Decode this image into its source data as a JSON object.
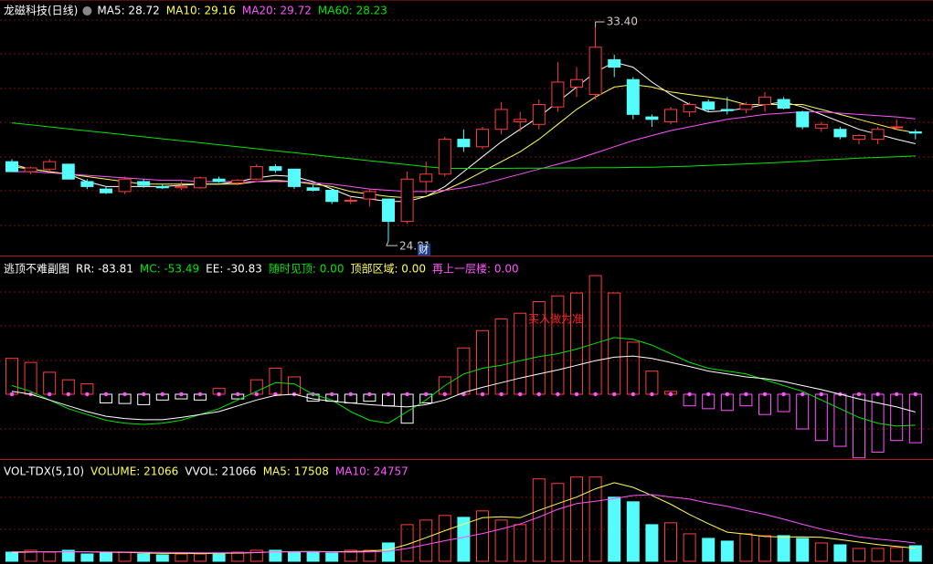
{
  "chart_data": [
    {
      "type": "candlestick",
      "title": "龙磁科技(日线)",
      "ylim": [
        24.3,
        34.5
      ],
      "up_color": "#ff3c3c",
      "down_color": "#54fcfc",
      "open": [
        28.0,
        27.6,
        27.7,
        27.9,
        27.2,
        26.9,
        26.8,
        27.2,
        27.0,
        26.95,
        26.95,
        27.3,
        27.15,
        27.3,
        27.8,
        27.7,
        26.95,
        26.85,
        26.45,
        26.5,
        26.5,
        25.6,
        27.2,
        27.5,
        28.9,
        28.6,
        29.3,
        29.6,
        29.5,
        30.2,
        31.0,
        30.7,
        32.1,
        31.3,
        29.8,
        29.6,
        30.0,
        30.4,
        30.1,
        30.1,
        30.3,
        30.5,
        30.0,
        29.35,
        29.3,
        28.9,
        28.9,
        29.4,
        29.2
      ],
      "high": [
        28.1,
        27.8,
        28.1,
        27.9,
        27.3,
        27.0,
        27.4,
        27.3,
        27.1,
        27.2,
        27.4,
        27.4,
        27.3,
        27.9,
        27.9,
        27.7,
        27.1,
        26.9,
        26.6,
        26.9,
        26.5,
        27.6,
        28.0,
        29.0,
        29.3,
        29.4,
        30.4,
        30.0,
        30.5,
        32.0,
        31.8,
        33.4,
        32.3,
        31.4,
        29.9,
        30.2,
        30.4,
        30.5,
        30.6,
        30.4,
        30.8,
        30.6,
        30.05,
        29.6,
        29.4,
        29.1,
        29.4,
        29.7,
        29.3
      ],
      "low": [
        27.6,
        27.5,
        27.6,
        27.3,
        26.9,
        26.7,
        26.7,
        26.95,
        26.9,
        26.85,
        26.9,
        27.15,
        27.05,
        27.25,
        27.55,
        26.9,
        26.8,
        26.3,
        26.3,
        26.2,
        24.81,
        25.5,
        26.7,
        27.4,
        28.4,
        28.5,
        29.1,
        29.2,
        29.3,
        30.0,
        30.6,
        30.5,
        31.4,
        29.7,
        29.4,
        29.5,
        29.8,
        30.0,
        29.9,
        29.95,
        30.0,
        30.1,
        29.3,
        29.2,
        28.9,
        28.7,
        28.7,
        29.3,
        28.9
      ],
      "close": [
        27.6,
        27.75,
        28.0,
        27.3,
        27.0,
        26.75,
        27.3,
        27.05,
        26.95,
        27.0,
        27.35,
        27.2,
        27.25,
        27.8,
        27.65,
        27.0,
        26.85,
        26.4,
        26.45,
        26.8,
        25.6,
        27.3,
        27.5,
        28.9,
        28.6,
        29.3,
        30.1,
        29.7,
        30.3,
        31.2,
        31.3,
        32.6,
        31.8,
        29.9,
        29.7,
        30.1,
        30.3,
        30.1,
        30.05,
        30.3,
        30.6,
        30.15,
        29.4,
        29.5,
        29.0,
        29.05,
        29.3,
        29.4,
        29.15
      ],
      "series": [
        {
          "name": "MA5: 28.72",
          "color": "#ffffff",
          "values": [
            27.9,
            27.7,
            27.6,
            27.5,
            27.2,
            27.0,
            27.0,
            27.0,
            27.0,
            27.05,
            27.1,
            27.1,
            27.2,
            27.35,
            27.45,
            27.4,
            27.2,
            26.9,
            26.6,
            26.5,
            26.4,
            26.4,
            26.6,
            27.0,
            27.6,
            28.2,
            28.8,
            29.3,
            29.8,
            30.4,
            31.0,
            31.6,
            32.0,
            31.8,
            31.2,
            30.7,
            30.3,
            30.0,
            30.05,
            30.15,
            30.3,
            30.4,
            30.2,
            29.9,
            29.6,
            29.3,
            29.1,
            28.9,
            28.72
          ]
        },
        {
          "name": "MA10: 29.16",
          "color": "#ffff54",
          "values": [
            27.8,
            27.7,
            27.6,
            27.5,
            27.4,
            27.3,
            27.2,
            27.1,
            27.1,
            27.1,
            27.1,
            27.1,
            27.1,
            27.2,
            27.25,
            27.2,
            27.1,
            27.0,
            26.8,
            26.7,
            26.6,
            26.55,
            26.6,
            26.85,
            27.2,
            27.6,
            28.0,
            28.4,
            28.9,
            29.5,
            30.1,
            30.6,
            31.0,
            31.1,
            31.0,
            30.8,
            30.7,
            30.6,
            30.5,
            30.3,
            30.3,
            30.3,
            30.3,
            30.1,
            29.9,
            29.7,
            29.5,
            29.3,
            29.16
          ]
        },
        {
          "name": "MA20: 29.72",
          "color": "#ff54ff",
          "values": [
            27.6,
            27.6,
            27.55,
            27.5,
            27.45,
            27.4,
            27.35,
            27.3,
            27.25,
            27.25,
            27.2,
            27.2,
            27.2,
            27.2,
            27.2,
            27.2,
            27.15,
            27.1,
            27.0,
            26.9,
            26.85,
            26.8,
            26.8,
            26.85,
            26.95,
            27.1,
            27.3,
            27.5,
            27.7,
            27.9,
            28.1,
            28.35,
            28.6,
            28.85,
            29.05,
            29.25,
            29.4,
            29.55,
            29.7,
            29.8,
            29.9,
            29.95,
            30.0,
            30.0,
            29.95,
            29.9,
            29.85,
            29.8,
            29.72
          ]
        },
        {
          "name": "MA60: 28.23",
          "color": "#00e600",
          "values": [
            29.56,
            29.48,
            29.4,
            29.32,
            29.24,
            29.16,
            29.08,
            29.0,
            28.92,
            28.84,
            28.76,
            28.68,
            28.6,
            28.52,
            28.44,
            28.36,
            28.28,
            28.2,
            28.12,
            28.04,
            27.96,
            27.88,
            27.8,
            27.73,
            27.73,
            27.73,
            27.73,
            27.74,
            27.74,
            27.75,
            27.75,
            27.76,
            27.76,
            27.77,
            27.78,
            27.8,
            27.82,
            27.85,
            27.88,
            27.91,
            27.94,
            27.98,
            28.02,
            28.06,
            28.1,
            28.14,
            28.17,
            28.2,
            28.23
          ]
        }
      ],
      "annotations": [
        "33.40",
        "24.81",
        "财"
      ]
    },
    {
      "type": "bar",
      "title": "逃顶不难副图",
      "ylim": [
        -112,
        235
      ],
      "up_color": "#ff3c3c",
      "down_color": "#ff54ff",
      "series": [
        {
          "name": "RR: -83.81",
          "color": "#ffffff",
          "kind": "bar",
          "values": [
            62,
            55,
            38,
            25,
            18,
            -15,
            -16,
            -18,
            -10,
            -8,
            -10,
            10,
            -8,
            25,
            45,
            30,
            -12,
            -12,
            -15,
            -12,
            -20,
            -50,
            -15,
            30,
            80,
            110,
            130,
            140,
            160,
            170,
            175,
            205,
            175,
            90,
            40,
            5,
            -20,
            -25,
            -28,
            -20,
            -35,
            -30,
            -60,
            -80,
            -90,
            -110,
            -100,
            -80,
            -83.81
          ]
        },
        {
          "name": "MC: -53.49",
          "color": "#00e600",
          "kind": "line",
          "values": [
            15,
            5,
            -10,
            -25,
            -35,
            -45,
            -50,
            -52,
            -50,
            -45,
            -35,
            -25,
            -10,
            5,
            20,
            18,
            0,
            -10,
            -30,
            -45,
            -50,
            -30,
            -10,
            15,
            35,
            45,
            50,
            58,
            65,
            70,
            78,
            88,
            98,
            95,
            85,
            70,
            55,
            45,
            40,
            35,
            25,
            15,
            5,
            -10,
            -25,
            -40,
            -50,
            -55,
            -53.49
          ]
        },
        {
          "name": "EE: -30.83",
          "color": "#ffffff",
          "kind": "line",
          "values": [
            5,
            0,
            -10,
            -20,
            -30,
            -38,
            -42,
            -44,
            -44,
            -40,
            -35,
            -30,
            -20,
            -10,
            -2,
            0,
            -8,
            -12,
            -15,
            -18,
            -20,
            -22,
            -18,
            -10,
            3,
            12,
            20,
            28,
            35,
            42,
            50,
            58,
            64,
            66,
            62,
            55,
            48,
            40,
            35,
            30,
            27,
            22,
            15,
            8,
            0,
            -8,
            -15,
            -22,
            -30.83
          ]
        }
      ],
      "header_extra": [
        {
          "text": "随时见顶: 0.00",
          "color": "#00e600"
        },
        {
          "text": "顶部区域: 0.00",
          "color": "#ffff54"
        },
        {
          "text": "再上一层楼: 0.00",
          "color": "#ff54ff"
        }
      ],
      "annotations": [
        "买入做为准"
      ]
    },
    {
      "type": "bar",
      "title": "VOL-TDX(5,10)",
      "ylim": [
        0,
        136000
      ],
      "up_color": "#ff3c3c",
      "down_color": "#54fcfc",
      "header_extra": [
        {
          "text": "VVOL: 21066",
          "color": "#ffffff"
        }
      ],
      "series": [
        {
          "name": "VOLUME: 21066",
          "color": "#ffff54",
          "kind": "bar",
          "values": [
            12400,
            14900,
            12400,
            14900,
            9900,
            11200,
            12400,
            9900,
            8700,
            9900,
            9900,
            11200,
            12400,
            14900,
            14900,
            12400,
            12400,
            11200,
            14900,
            14900,
            24800,
            49600,
            55800,
            62000,
            59500,
            68200,
            55800,
            49600,
            111600,
            105400,
            114100,
            114100,
            86800,
            80600,
            49600,
            52100,
            37200,
            31000,
            27300,
            37200,
            34700,
            34700,
            31000,
            24800,
            22300,
            17400,
            17400,
            18600,
            21066
          ]
        },
        {
          "name": "MA5: 17508",
          "color": "#ffff54",
          "kind": "line",
          "values": [
            12000,
            12500,
            13000,
            12800,
            12900,
            12200,
            12000,
            11200,
            10600,
            10800,
            10400,
            10700,
            11000,
            11800,
            12700,
            13100,
            13300,
            13000,
            13100,
            13700,
            15700,
            22800,
            31900,
            41400,
            50300,
            59000,
            60300,
            59000,
            69000,
            78200,
            86900,
            98200,
            106400,
            100200,
            89200,
            77300,
            63300,
            51000,
            39400,
            36900,
            33500,
            32900,
            33000,
            32500,
            29400,
            26000,
            22600,
            20100,
            17508
          ]
        },
        {
          "name": "MA10: 24757",
          "color": "#ff54ff",
          "kind": "line",
          "values": [
            13000,
            13000,
            13000,
            12900,
            12800,
            12700,
            12500,
            12300,
            12000,
            11700,
            11400,
            11400,
            11600,
            12000,
            12600,
            12700,
            12800,
            12600,
            12400,
            12700,
            13600,
            17300,
            22500,
            27800,
            32500,
            37600,
            43800,
            50500,
            59800,
            70300,
            78200,
            81400,
            85100,
            89000,
            90300,
            87100,
            84200,
            78700,
            74500,
            68800,
            63500,
            57000,
            50100,
            43700,
            37800,
            33000,
            30100,
            27700,
            24757
          ]
        }
      ]
    }
  ]
}
